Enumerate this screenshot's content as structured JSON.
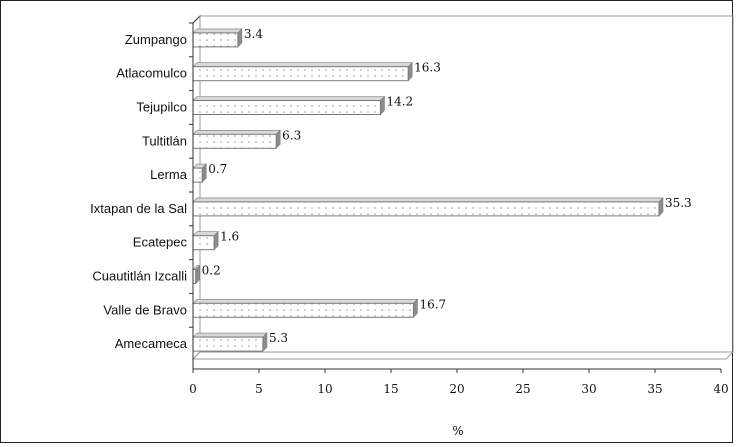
{
  "chart_data": {
    "type": "bar",
    "orientation": "horizontal",
    "style": "3d",
    "categories": [
      "Zumpango",
      "Atlacomulco",
      "Tejupilco",
      "Tultitlán",
      "Lerma",
      "Ixtapan de la Sal",
      "Ecatepec",
      "Cuautitlán Izcalli",
      "Valle de Bravo",
      "Amecameca"
    ],
    "values": [
      3.4,
      16.3,
      14.2,
      6.3,
      0.7,
      35.3,
      1.6,
      0.2,
      16.7,
      5.3
    ],
    "data_labels": [
      "3.4",
      "16.3",
      "14.2",
      "6.3",
      "0.7",
      "35.3",
      "1.6",
      "0.2",
      "16.7",
      "5.3"
    ],
    "xlabel": "%",
    "ylabel": "",
    "title": "",
    "xlim": [
      0,
      40
    ],
    "xticks": [
      0,
      5,
      10,
      15,
      20,
      25,
      30,
      35,
      40
    ],
    "xtick_labels": [
      "0",
      "5",
      "10",
      "15",
      "20",
      "25",
      "30",
      "35",
      "40"
    ],
    "grid": false,
    "legend": "none",
    "colors": {
      "bar_fill": "#ffffff",
      "bar_dots": "#9a9a9a",
      "bar_border": "#7a7a7a",
      "bar_side": "#8c8c8c",
      "bar_top": "#d8d8d8",
      "axis": "#333333",
      "plot_border": "#9a9a9a"
    }
  }
}
